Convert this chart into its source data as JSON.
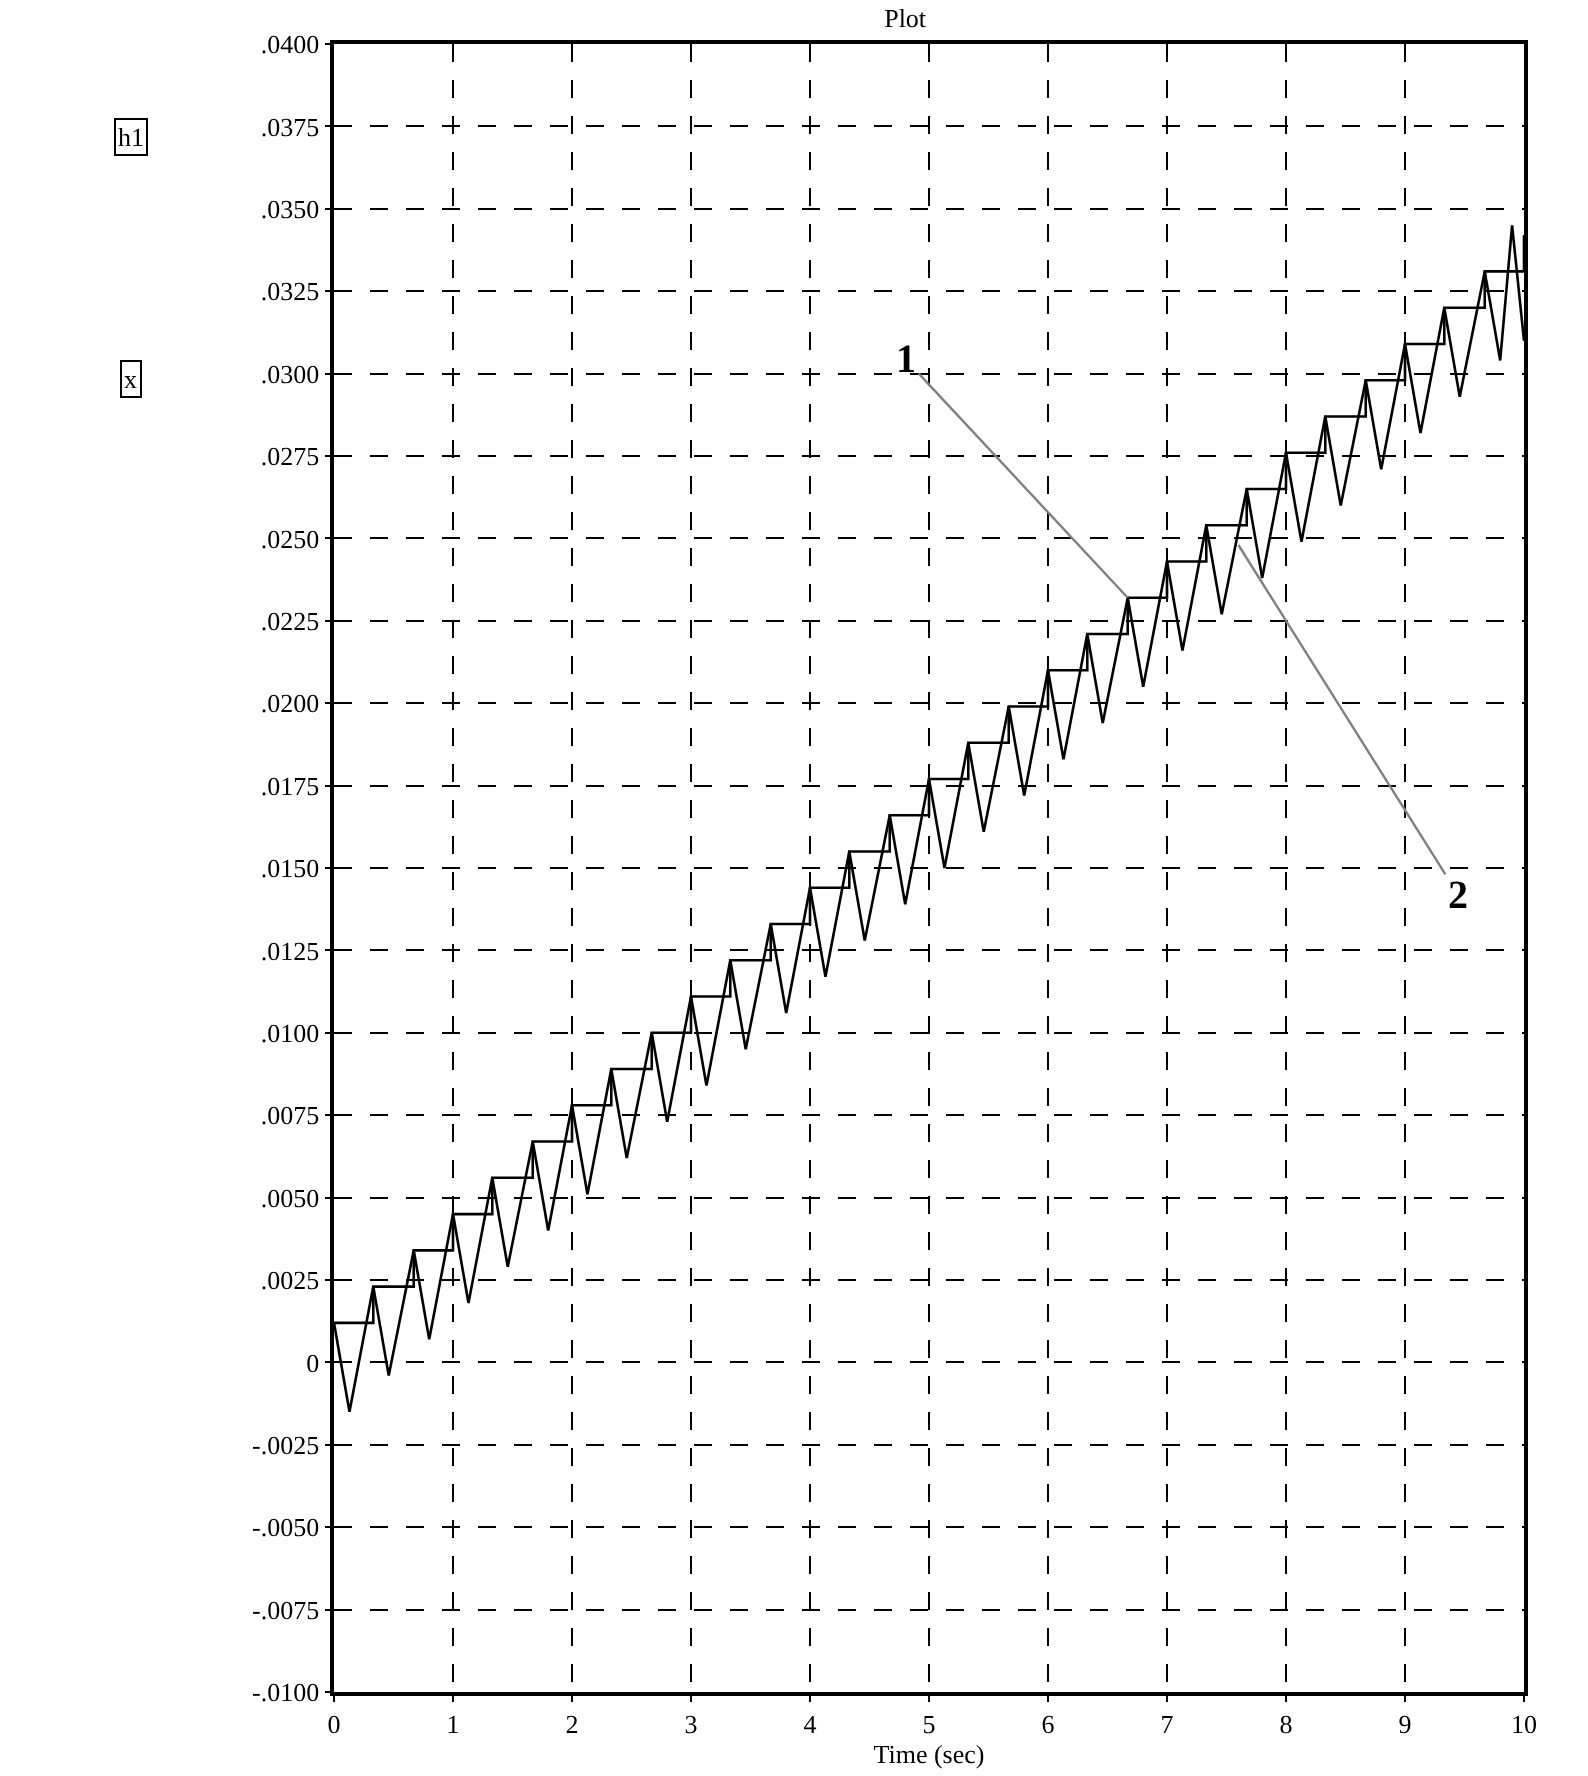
{
  "chart_data": {
    "type": "line",
    "title": "Plot",
    "xlabel": "Time (sec)",
    "xlim": [
      0,
      10
    ],
    "xticks": [
      0,
      1,
      2,
      3,
      4,
      5,
      6,
      7,
      8,
      9,
      10
    ],
    "ylim": [
      -0.01,
      0.04
    ],
    "yticks": [
      {
        "value": -0.01,
        "label": "-.0100"
      },
      {
        "value": -0.0075,
        "label": "-.0075"
      },
      {
        "value": -0.005,
        "label": "-.0050"
      },
      {
        "value": -0.0025,
        "label": "-.0025"
      },
      {
        "value": 0,
        "label": "0"
      },
      {
        "value": 0.0025,
        "label": ".0025"
      },
      {
        "value": 0.005,
        "label": ".0050"
      },
      {
        "value": 0.0075,
        "label": ".0075"
      },
      {
        "value": 0.01,
        "label": ".0100"
      },
      {
        "value": 0.0125,
        "label": ".0125"
      },
      {
        "value": 0.015,
        "label": ".0150"
      },
      {
        "value": 0.0175,
        "label": ".0175"
      },
      {
        "value": 0.02,
        "label": ".0200"
      },
      {
        "value": 0.0225,
        "label": ".0225"
      },
      {
        "value": 0.025,
        "label": ".0250"
      },
      {
        "value": 0.0275,
        "label": ".0275"
      },
      {
        "value": 0.03,
        "label": ".0300"
      },
      {
        "value": 0.0325,
        "label": ".0325"
      },
      {
        "value": 0.035,
        "label": ".0350"
      },
      {
        "value": 0.0375,
        "label": ".0375"
      },
      {
        "value": 0.04,
        "label": ".0400"
      }
    ],
    "grid": true,
    "marker": "none",
    "line_style": "solid",
    "series": [
      {
        "type": "step",
        "color": "#000000",
        "x": [
          0,
          0.33,
          0.67,
          1,
          1.33,
          1.67,
          2,
          2.33,
          2.67,
          3,
          3.33,
          3.67,
          4,
          4.33,
          4.67,
          5,
          5.33,
          5.67,
          6,
          6.33,
          6.67,
          7,
          7.33,
          7.67,
          8,
          8.33,
          8.67,
          9,
          9.33,
          9.67,
          10
        ],
        "values": [
          0.0012,
          0.0023,
          0.0034,
          0.0045,
          0.0056,
          0.0067,
          0.0078,
          0.0089,
          0.01,
          0.0111,
          0.0122,
          0.0133,
          0.0144,
          0.0155,
          0.0166,
          0.0177,
          0.0188,
          0.0199,
          0.021,
          0.0221,
          0.0232,
          0.0243,
          0.0254,
          0.0265,
          0.0276,
          0.0287,
          0.0298,
          0.0309,
          0.032,
          0.0331,
          0.0342
        ]
      },
      {
        "type": "line",
        "color": "#000000",
        "x": [
          0,
          0.13,
          0.33,
          0.46,
          0.67,
          0.8,
          1,
          1.13,
          1.33,
          1.46,
          1.67,
          1.8,
          2,
          2.13,
          2.33,
          2.46,
          2.67,
          2.8,
          3,
          3.13,
          3.33,
          3.46,
          3.67,
          3.8,
          4,
          4.13,
          4.33,
          4.46,
          4.67,
          4.8,
          5,
          5.13,
          5.33,
          5.46,
          5.67,
          5.8,
          6,
          6.13,
          6.33,
          6.46,
          6.67,
          6.8,
          7,
          7.13,
          7.33,
          7.46,
          7.67,
          7.8,
          8,
          8.13,
          8.33,
          8.46,
          8.67,
          8.8,
          9,
          9.13,
          9.33,
          9.46,
          9.67,
          9.8,
          9.9,
          10
        ],
        "values": [
          0.0012,
          -0.0015,
          0.0023,
          -0.0004,
          0.0034,
          0.0007,
          0.0045,
          0.0018,
          0.0056,
          0.0029,
          0.0067,
          0.004,
          0.0078,
          0.0051,
          0.0089,
          0.0062,
          0.01,
          0.0073,
          0.0111,
          0.0084,
          0.0122,
          0.0095,
          0.0133,
          0.0106,
          0.0144,
          0.0117,
          0.0155,
          0.0128,
          0.0166,
          0.0139,
          0.0177,
          0.015,
          0.0188,
          0.0161,
          0.0199,
          0.0172,
          0.021,
          0.0183,
          0.0221,
          0.0194,
          0.0232,
          0.0205,
          0.0243,
          0.0216,
          0.0254,
          0.0227,
          0.0265,
          0.0238,
          0.0276,
          0.0249,
          0.0287,
          0.026,
          0.0298,
          0.0271,
          0.0309,
          0.0282,
          0.032,
          0.0293,
          0.0331,
          0.0304,
          0.0345,
          0.031
        ]
      }
    ],
    "annotations": [
      {
        "text": "1",
        "x": 6.67,
        "y": 0.0232
      },
      {
        "text": "2",
        "x": 7.6,
        "y": 0.0248
      },
      "h1",
      "x"
    ]
  }
}
